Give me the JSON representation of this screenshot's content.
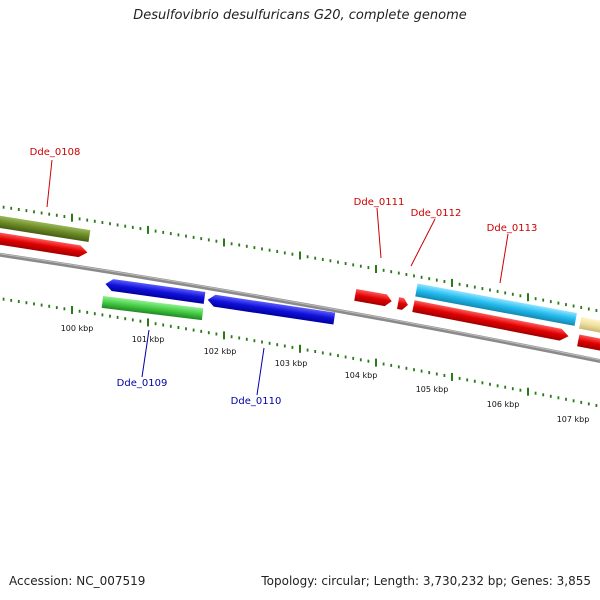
{
  "title": "Desulfovibrio desulfuricans G20, complete genome",
  "footer": {
    "accession": "Accession: NC_007519",
    "stats": "Topology: circular; Length: 3,730,232 bp; Genes: 3,855"
  },
  "colors": {
    "backbone": "#8a8a8a",
    "tick": "#2a7a1a",
    "cds_red": "#e00000",
    "cds_blue": "#1010d8",
    "cds_green": "#44cc44",
    "cds_olive": "#6b8a25",
    "cds_cyan": "#22bbee",
    "cds_khaki": "#eee0a0",
    "label_forward": "#cc0000",
    "label_reverse": "#0000aa"
  },
  "gene_labels": {
    "forward": [
      "Dde_0108",
      "Dde_0111",
      "Dde_0112",
      "Dde_0113"
    ],
    "reverse": [
      "Dde_0109",
      "Dde_0110"
    ]
  },
  "scale_labels": [
    "100 kbp",
    "101 kbp",
    "102 kbp",
    "103 kbp",
    "104 kbp",
    "105 kbp",
    "106 kbp",
    "107 kbp"
  ]
}
